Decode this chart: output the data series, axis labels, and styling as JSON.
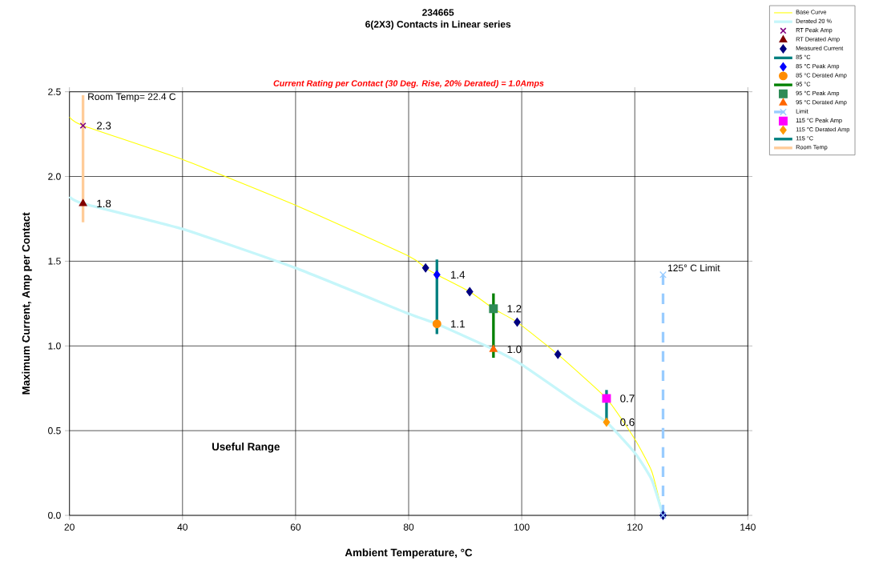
{
  "chart_data": {
    "type": "line",
    "title": "234665",
    "subtitle": "6(2X3) Contacts in Linear series",
    "xlabel": "Ambient Temperature,  °C",
    "ylabel": "Maximum Current, Amp per Contact",
    "xlim": [
      20,
      140
    ],
    "ylim": [
      0,
      2.5
    ],
    "xticks": [
      20,
      40,
      60,
      80,
      100,
      120,
      140
    ],
    "yticks": [
      {
        "value": 0,
        "label": "0.0"
      },
      0.5,
      {
        "value": 1,
        "label": "1.0"
      },
      1.5,
      {
        "value": 2,
        "label": "2.0"
      },
      2.5
    ],
    "grid": true,
    "legend": "top right",
    "annotations": [
      "Current Rating per Contact (30 Deg. Rise, 20% Derated)  = 1.0Amps",
      {
        "text": "Room Temp= 22.4 C",
        "x": 22.4,
        "y": 2.42
      },
      {
        "text": "125° C Limit",
        "x": 125,
        "y": 1.42
      },
      "Useful Range"
    ],
    "series": [
      {
        "name": "Base Curve",
        "color": "#ffff00",
        "marker": "none",
        "x": [
          20,
          22.4,
          40,
          60,
          80,
          83,
          85,
          90.8,
          95,
          99.2,
          106.4,
          115,
          120,
          123,
          125
        ],
        "values": [
          2.35,
          2.3,
          2.1,
          1.83,
          1.53,
          1.46,
          1.42,
          1.32,
          1.22,
          1.14,
          0.95,
          0.69,
          0.45,
          0.26,
          0
        ]
      },
      {
        "name": "Derated 20 %",
        "color": "#c6f6fa",
        "marker": "none",
        "x": [
          20,
          22.4,
          40,
          60,
          80,
          85,
          95,
          100,
          110,
          115,
          120,
          123,
          125
        ],
        "values": [
          1.88,
          1.84,
          1.69,
          1.46,
          1.19,
          1.13,
          0.98,
          0.89,
          0.66,
          0.55,
          0.37,
          0.21,
          0
        ]
      },
      {
        "name": "RT Peak Amp",
        "type": "scatter",
        "color": "#800080",
        "marker": "cross",
        "x": [
          22.4
        ],
        "values": [
          2.3
        ],
        "value_labels": [
          "2.3"
        ]
      },
      {
        "name": "RT Derated Amp",
        "type": "scatter",
        "color": "#800000",
        "marker": "triangle",
        "x": [
          22.4
        ],
        "values": [
          1.84
        ],
        "value_labels": [
          "1.8"
        ]
      },
      {
        "name": "Measured Current",
        "type": "scatter",
        "color": "#000080",
        "marker": "diamond",
        "x": [
          83,
          90.8,
          99.2,
          106.4,
          125
        ],
        "values": [
          1.46,
          1.32,
          1.14,
          0.95,
          0
        ]
      },
      {
        "name": "85 °C",
        "type": "line",
        "color": "#008080",
        "marker": "none",
        "x": [
          85,
          85
        ],
        "values": [
          1.07,
          1.51
        ]
      },
      {
        "name": "85 °C Peak Amp",
        "type": "scatter",
        "color": "#0000ff",
        "marker": "diamond",
        "x": [
          85
        ],
        "values": [
          1.42
        ],
        "value_labels": [
          "1.4"
        ]
      },
      {
        "name": "85 °C Derated Amp",
        "type": "scatter",
        "color": "#ff8c00",
        "marker": "circle",
        "x": [
          85
        ],
        "values": [
          1.13
        ],
        "value_labels": [
          "1.1"
        ]
      },
      {
        "name": "95 °C",
        "type": "line",
        "color": "#008000",
        "marker": "none",
        "x": [
          95,
          95
        ],
        "values": [
          0.93,
          1.31
        ]
      },
      {
        "name": "95 °C Peak Amp",
        "type": "scatter",
        "color": "#2e8b57",
        "marker": "square",
        "x": [
          95
        ],
        "values": [
          1.22
        ],
        "value_labels": [
          "1.2"
        ]
      },
      {
        "name": "95 °C Derated Amp",
        "type": "scatter",
        "color": "#ff6600",
        "marker": "triangle",
        "x": [
          95
        ],
        "values": [
          0.98
        ],
        "value_labels": [
          "1.0"
        ]
      },
      {
        "name": "Limit",
        "type": "line",
        "color": "#99ccff",
        "marker": "cross",
        "line_style": "dashed",
        "x": [
          125,
          125
        ],
        "values": [
          0,
          1.42
        ]
      },
      {
        "name": "115 °C Peak Amp",
        "type": "scatter",
        "color": "#ff00ff",
        "marker": "square",
        "x": [
          115
        ],
        "values": [
          0.69
        ],
        "value_labels": [
          "0.7"
        ]
      },
      {
        "name": "115 °C Derated Amp",
        "type": "scatter",
        "color": "#ff9900",
        "marker": "diamond",
        "x": [
          115
        ],
        "values": [
          0.55
        ],
        "value_labels": [
          "0.6"
        ]
      },
      {
        "name": "115 °C",
        "type": "line",
        "color": "#008080",
        "marker": "none",
        "x": [
          115,
          115
        ],
        "values": [
          0.54,
          0.74
        ]
      },
      {
        "name": "Room Temp",
        "type": "line",
        "color": "#ffcc99",
        "marker": "none",
        "x": [
          22.4,
          22.4
        ],
        "values": [
          1.73,
          2.48
        ]
      }
    ]
  }
}
